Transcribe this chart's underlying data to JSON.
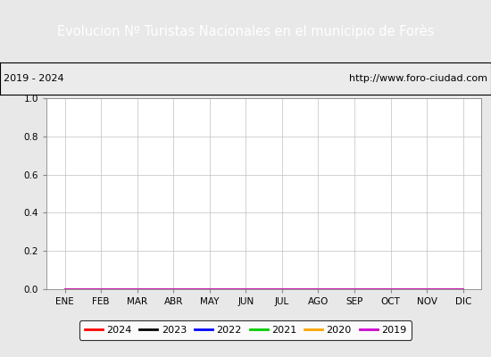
{
  "title": "Evolucion Nº Turistas Nacionales en el municipio de Forès",
  "title_bg_color": "#4472c4",
  "title_text_color": "#ffffff",
  "subtitle_left": "2019 - 2024",
  "subtitle_right": "http://www.foro-ciudad.com",
  "subtitle_bg_color": "#ebebeb",
  "subtitle_text_color": "#000000",
  "subtitle_border_color": "#000000",
  "x_labels": [
    "ENE",
    "FEB",
    "MAR",
    "ABR",
    "MAY",
    "JUN",
    "JUL",
    "AGO",
    "SEP",
    "OCT",
    "NOV",
    "DIC"
  ],
  "ylim": [
    0.0,
    1.0
  ],
  "yticks": [
    0.0,
    0.2,
    0.4,
    0.6,
    0.8,
    1.0
  ],
  "series": [
    {
      "year": "2024",
      "color": "#ff0000",
      "data": [
        0,
        0,
        0,
        0,
        null,
        null,
        null,
        null,
        null,
        null,
        null,
        null
      ]
    },
    {
      "year": "2023",
      "color": "#000000",
      "data": [
        0,
        0,
        0,
        0,
        0,
        0,
        0,
        0,
        0,
        0,
        0,
        0
      ]
    },
    {
      "year": "2022",
      "color": "#0000ff",
      "data": [
        0,
        0,
        0,
        0,
        0,
        0,
        0,
        0,
        0,
        0,
        0,
        0
      ]
    },
    {
      "year": "2021",
      "color": "#00cc00",
      "data": [
        0,
        0,
        0,
        0,
        0,
        0,
        0,
        0,
        0,
        0,
        0,
        0
      ]
    },
    {
      "year": "2020",
      "color": "#ffa500",
      "data": [
        0,
        0,
        0,
        0,
        0,
        0,
        0,
        0,
        0,
        0,
        0,
        0
      ]
    },
    {
      "year": "2019",
      "color": "#cc00cc",
      "data": [
        0,
        0,
        0,
        0,
        0,
        0,
        0,
        0,
        0,
        0,
        0,
        0
      ]
    }
  ],
  "plot_bg_color": "#e8e8e8",
  "plot_interior_color": "#ffffff",
  "grid_color": "#c0c0c0",
  "legend_bg_color": "#ffffff",
  "legend_border_color": "#000000",
  "outer_bg_color": "#e8e8e8",
  "title_fontsize": 10.5,
  "subtitle_fontsize": 8,
  "tick_fontsize": 7.5,
  "legend_fontsize": 8
}
